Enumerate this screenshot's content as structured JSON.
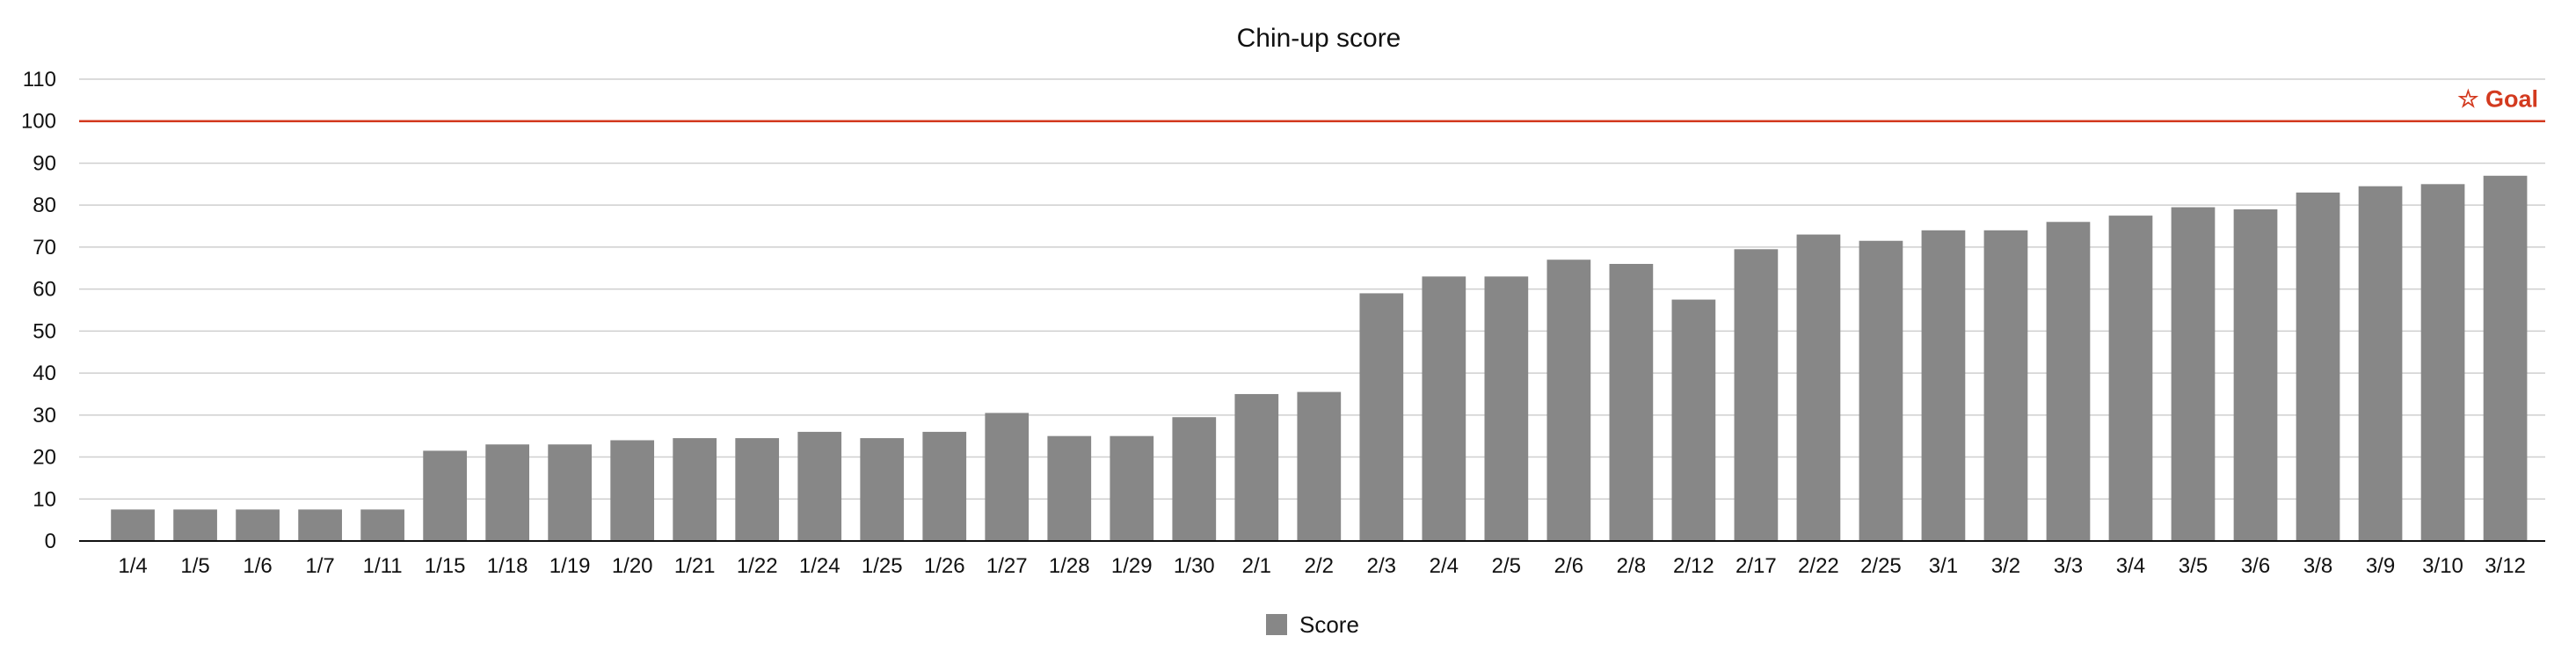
{
  "chart_data": {
    "type": "bar",
    "title": "Chin-up score",
    "xlabel": "",
    "ylabel": "",
    "ylim": [
      0,
      110
    ],
    "yticks": [
      0,
      10,
      20,
      30,
      40,
      50,
      60,
      70,
      80,
      90,
      100,
      110
    ],
    "grid": true,
    "legend_position": "bottom-center",
    "categories": [
      "1/4",
      "1/5",
      "1/6",
      "1/7",
      "1/11",
      "1/15",
      "1/18",
      "1/19",
      "1/20",
      "1/21",
      "1/22",
      "1/24",
      "1/25",
      "1/26",
      "1/27",
      "1/28",
      "1/29",
      "1/30",
      "2/1",
      "2/2",
      "2/3",
      "2/4",
      "2/5",
      "2/6",
      "2/8",
      "2/12",
      "2/17",
      "2/22",
      "2/25",
      "3/1",
      "3/2",
      "3/3",
      "3/4",
      "3/5",
      "3/6",
      "3/8",
      "3/9",
      "3/10",
      "3/12"
    ],
    "series": [
      {
        "name": "Score",
        "color": "#878787",
        "values": [
          7.5,
          7.5,
          7.5,
          7.5,
          7.5,
          21.5,
          23,
          23,
          24,
          24.5,
          24.5,
          26,
          24.5,
          26,
          30.5,
          25,
          25,
          29.5,
          35,
          35.5,
          59,
          63,
          63,
          67,
          66,
          57.5,
          69.5,
          73,
          71.5,
          74,
          74,
          76,
          77.5,
          79.5,
          79,
          83,
          84.5,
          85,
          87
        ]
      }
    ],
    "reference_line": {
      "value": 100,
      "label": "☆ Goal",
      "color": "#d33a1f"
    },
    "colors": {
      "grid": "#cfcfcf",
      "axis": "#111111"
    }
  }
}
